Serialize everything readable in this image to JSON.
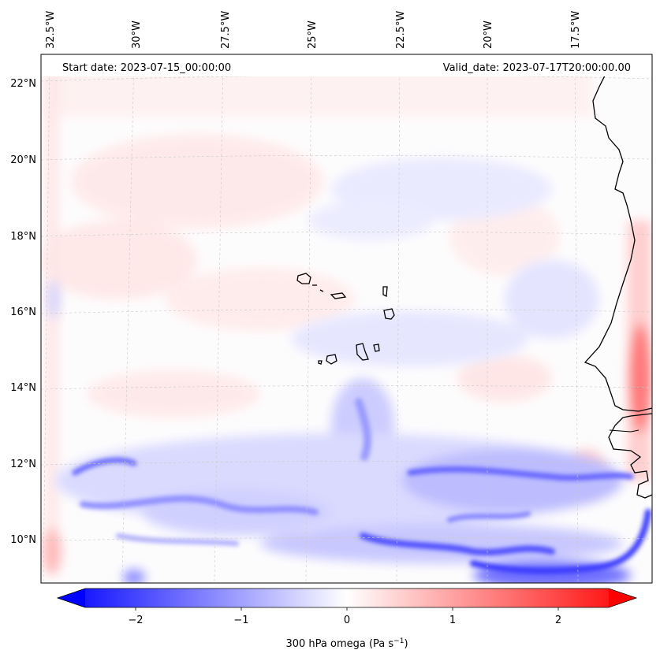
{
  "header": {
    "start_date": "Start date: 2023-07-15_00:00:00",
    "valid_date": "Valid_date: 2023-07-17T20:00:00.00"
  },
  "map": {
    "lon_labels": [
      "32.5°W",
      "30°W",
      "27.5°W",
      "25°W",
      "22.5°W",
      "20°W",
      "17.5°W"
    ],
    "lat_labels": [
      "22°N",
      "20°N",
      "18°N",
      "16°N",
      "14°N",
      "12°N",
      "10°N"
    ],
    "gridlines": true
  },
  "colorbar": {
    "ticks": [
      "−2",
      "−1",
      "0",
      "1",
      "2"
    ],
    "label_main": "300 hPa omega (Pa s",
    "label_sup": "−1",
    "label_end": ")",
    "cmap": [
      "#0000ff",
      "#ffffff",
      "#ff0000"
    ]
  }
}
